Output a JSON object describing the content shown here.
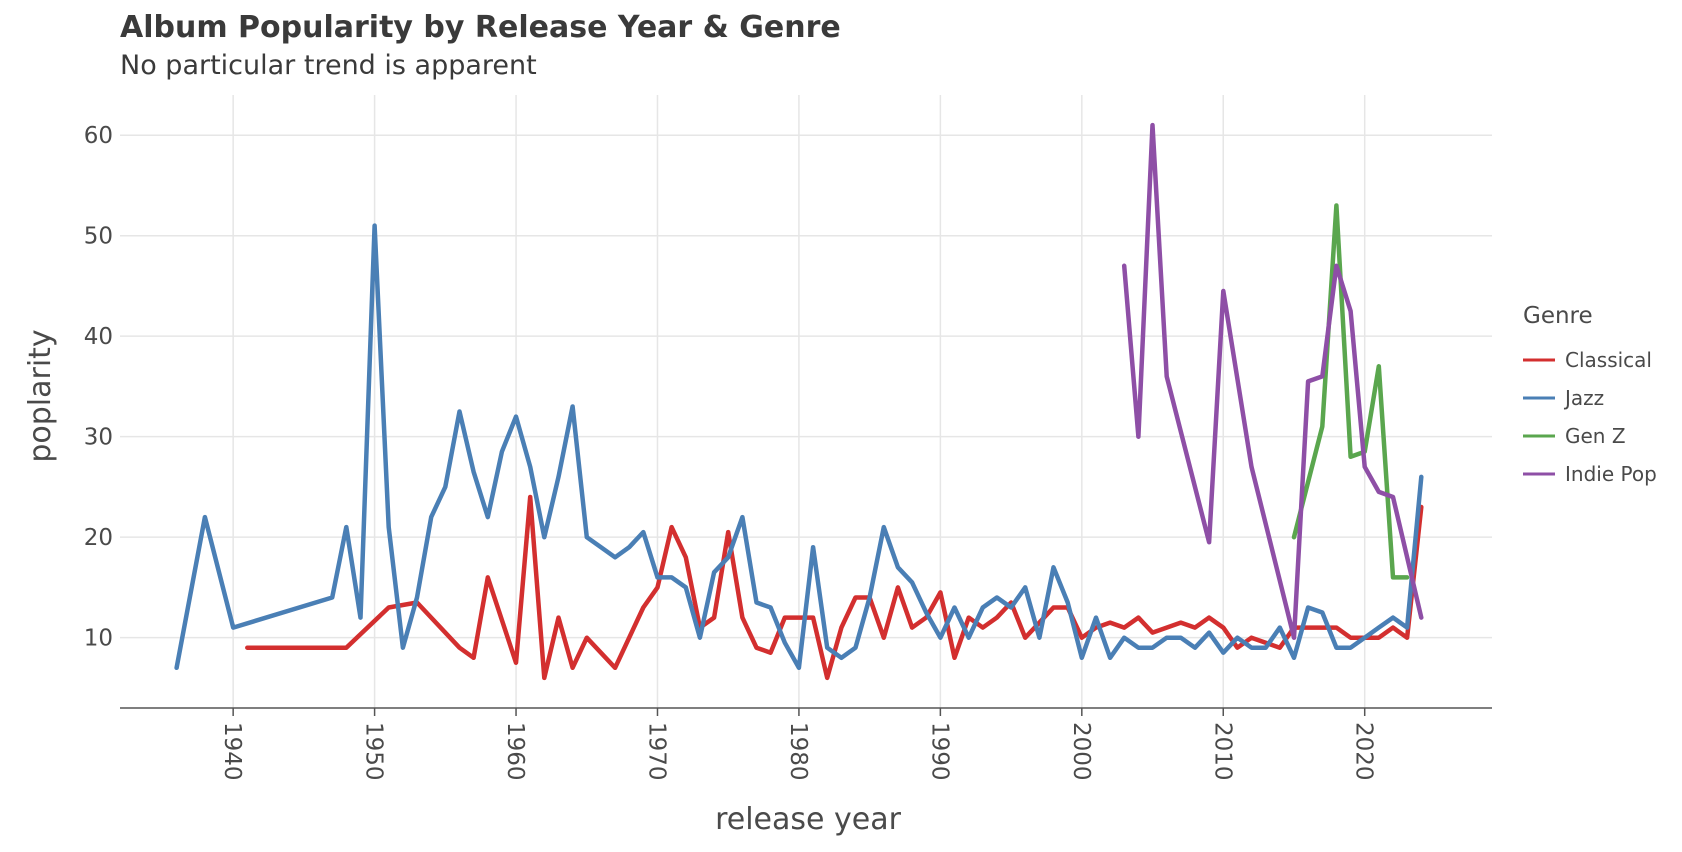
{
  "chart_data": {
    "type": "line",
    "title": "Album Popularity by Release Year & Genre",
    "subtitle": "No particular trend is apparent",
    "xlabel": "release year",
    "ylabel": "poplarity",
    "xlim": [
      1932,
      2029
    ],
    "ylim": [
      3,
      64
    ],
    "x_ticks": [
      1940,
      1950,
      1960,
      1970,
      1980,
      1990,
      2000,
      2010,
      2020
    ],
    "y_ticks": [
      10,
      20,
      30,
      40,
      50,
      60
    ],
    "grid": true,
    "legend": {
      "title": "Genre",
      "placement": "right"
    },
    "series": [
      {
        "name": "Classical",
        "color": "#d32f2f",
        "x": [
          1941,
          1948,
          1951,
          1953,
          1956,
          1957,
          1958,
          1960,
          1961,
          1962,
          1963,
          1964,
          1965,
          1967,
          1969,
          1970,
          1971,
          1972,
          1973,
          1974,
          1975,
          1976,
          1977,
          1978,
          1979,
          1980,
          1981,
          1982,
          1983,
          1984,
          1985,
          1986,
          1987,
          1988,
          1989,
          1990,
          1991,
          1992,
          1993,
          1994,
          1995,
          1996,
          1997,
          1998,
          1999,
          2000,
          2001,
          2002,
          2003,
          2004,
          2005,
          2006,
          2007,
          2008,
          2009,
          2010,
          2011,
          2012,
          2013,
          2014,
          2015,
          2016,
          2017,
          2018,
          2019,
          2020,
          2021,
          2022,
          2023,
          2024
        ],
        "y": [
          9,
          9,
          13,
          13.5,
          9,
          8,
          16,
          7.5,
          24,
          6,
          12,
          7,
          10,
          7,
          13,
          15,
          21,
          18,
          11,
          12,
          20.5,
          12,
          9,
          8.5,
          12,
          12,
          12,
          6,
          11,
          14,
          14,
          10,
          15,
          11,
          12,
          14.5,
          8,
          12,
          11,
          12,
          13.5,
          10,
          11.5,
          13,
          13,
          10,
          11,
          11.5,
          11,
          12,
          10.5,
          11,
          11.5,
          11,
          12,
          11,
          9,
          10,
          9.5,
          9,
          11,
          11,
          11,
          11,
          10,
          10,
          10,
          11,
          10,
          23
        ]
      },
      {
        "name": "Jazz",
        "color": "#4a7fb5",
        "x": [
          1936,
          1938,
          1940,
          1947,
          1948,
          1949,
          1950,
          1951,
          1952,
          1953,
          1954,
          1955,
          1956,
          1957,
          1958,
          1959,
          1960,
          1961,
          1962,
          1963,
          1964,
          1965,
          1966,
          1967,
          1968,
          1969,
          1970,
          1971,
          1972,
          1973,
          1974,
          1975,
          1976,
          1977,
          1978,
          1979,
          1980,
          1981,
          1982,
          1983,
          1984,
          1985,
          1986,
          1987,
          1988,
          1989,
          1990,
          1991,
          1992,
          1993,
          1994,
          1995,
          1996,
          1997,
          1998,
          1999,
          2000,
          2001,
          2002,
          2003,
          2004,
          2005,
          2006,
          2007,
          2008,
          2009,
          2010,
          2011,
          2012,
          2013,
          2014,
          2015,
          2016,
          2017,
          2018,
          2019,
          2020,
          2021,
          2022,
          2023,
          2024
        ],
        "y": [
          7,
          22,
          11,
          14,
          21,
          12,
          51,
          21,
          9,
          14,
          22,
          25,
          32.5,
          26.5,
          22,
          28.5,
          32,
          27,
          20,
          26,
          33,
          20,
          19,
          18,
          19,
          20.5,
          16,
          16,
          15,
          10,
          16.5,
          18,
          22,
          13.5,
          13,
          9.5,
          7,
          19,
          9,
          8,
          9,
          14,
          21,
          17,
          15.5,
          12.5,
          10,
          13,
          10,
          13,
          14,
          13,
          15,
          10,
          17,
          13.5,
          8,
          12,
          8,
          10,
          9,
          9,
          10,
          10,
          9,
          10.5,
          8.5,
          10,
          9,
          9,
          11,
          8,
          13,
          12.5,
          9,
          9,
          10,
          11,
          12,
          11,
          26
        ]
      },
      {
        "name": "Gen Z",
        "color": "#5aa64e",
        "x": [
          2015,
          2016,
          2017,
          2018,
          2019,
          2020,
          2021,
          2022,
          2023
        ],
        "y": [
          20,
          25.5,
          31,
          53,
          28,
          28.5,
          37,
          16,
          16
        ]
      },
      {
        "name": "Indie Pop",
        "color": "#8e4fa6",
        "x": [
          2003,
          2004,
          2005,
          2006,
          2009,
          2010,
          2012,
          2015,
          2016,
          2017,
          2018,
          2019,
          2020,
          2021,
          2022,
          2024
        ],
        "y": [
          47,
          30,
          61,
          36,
          19.5,
          44.5,
          27,
          10,
          35.5,
          36,
          47,
          42.5,
          27,
          24.5,
          24,
          12
        ]
      }
    ]
  }
}
